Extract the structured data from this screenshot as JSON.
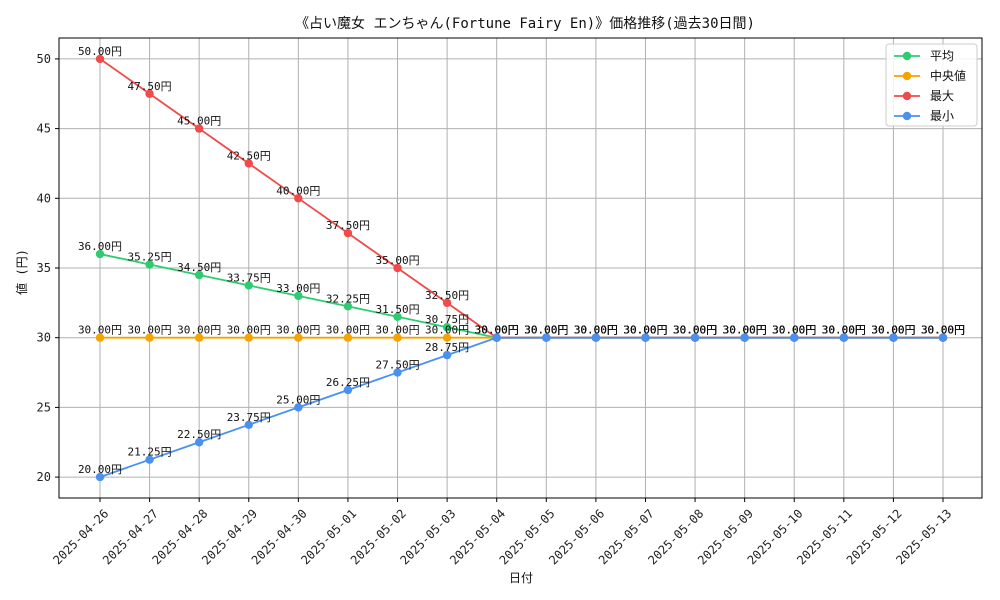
{
  "chart_data": {
    "type": "line",
    "title": "《占い魔女 エンちゃん(Fortune Fairy En)》価格推移(過去30日間)",
    "xlabel": "日付",
    "ylabel": "値 (円)",
    "ylim": [
      18.5,
      51.5
    ],
    "yticks": [
      20,
      25,
      30,
      35,
      40,
      45,
      50
    ],
    "grid": true,
    "legend_position": "top-right",
    "value_suffix": "円",
    "categories": [
      "2025-04-26",
      "2025-04-27",
      "2025-04-28",
      "2025-04-29",
      "2025-04-30",
      "2025-05-01",
      "2025-05-02",
      "2025-05-03",
      "2025-05-04",
      "2025-05-05",
      "2025-05-06",
      "2025-05-07",
      "2025-05-08",
      "2025-05-09",
      "2025-05-10",
      "2025-05-11",
      "2025-05-12",
      "2025-05-13"
    ],
    "series": [
      {
        "name": "平均",
        "color": "#2ecc71",
        "values": [
          36.0,
          35.25,
          34.5,
          33.75,
          33.0,
          32.25,
          31.5,
          30.75,
          30.0,
          30.0,
          30.0,
          30.0,
          30.0,
          30.0,
          30.0,
          30.0,
          30.0,
          30.0
        ]
      },
      {
        "name": "中央値",
        "color": "#f5a300",
        "values": [
          30.0,
          30.0,
          30.0,
          30.0,
          30.0,
          30.0,
          30.0,
          30.0,
          30.0,
          30.0,
          30.0,
          30.0,
          30.0,
          30.0,
          30.0,
          30.0,
          30.0,
          30.0
        ]
      },
      {
        "name": "最大",
        "color": "#f04a4a",
        "values": [
          50.0,
          47.5,
          45.0,
          42.5,
          40.0,
          37.5,
          35.0,
          32.5,
          30.0,
          30.0,
          30.0,
          30.0,
          30.0,
          30.0,
          30.0,
          30.0,
          30.0,
          30.0
        ]
      },
      {
        "name": "最小",
        "color": "#4a90f0",
        "values": [
          20.0,
          21.25,
          22.5,
          23.75,
          25.0,
          26.25,
          27.5,
          28.75,
          30.0,
          30.0,
          30.0,
          30.0,
          30.0,
          30.0,
          30.0,
          30.0,
          30.0,
          30.0
        ]
      }
    ]
  }
}
